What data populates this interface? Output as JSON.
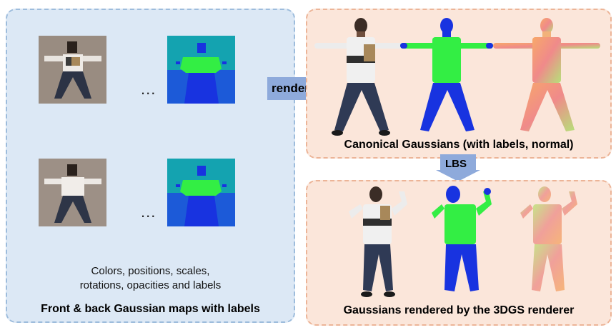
{
  "left": {
    "dots_top": "...",
    "dots_bottom": "...",
    "attributes_line1": "Colors, positions, scales,",
    "attributes_line2": "rotations, opacities and labels",
    "title": "Front & back Gaussian maps with labels"
  },
  "arrows": {
    "rendering": "rendering",
    "lbs": "LBS"
  },
  "top_right": {
    "title": "Canonical Gaussians (with labels, normal)"
  },
  "bottom_right": {
    "title": "Gaussians rendered by the 3DGS renderer"
  },
  "colors": {
    "left_panel_bg": "#dce8f5",
    "right_panel_bg": "#fbe6da",
    "arrow_fill": "#8eaadb",
    "label_upper": "#33ee44",
    "label_lower": "#1833e0",
    "label_background_top": "#14a3b0",
    "label_background_bottom": "#1c5ad8"
  }
}
